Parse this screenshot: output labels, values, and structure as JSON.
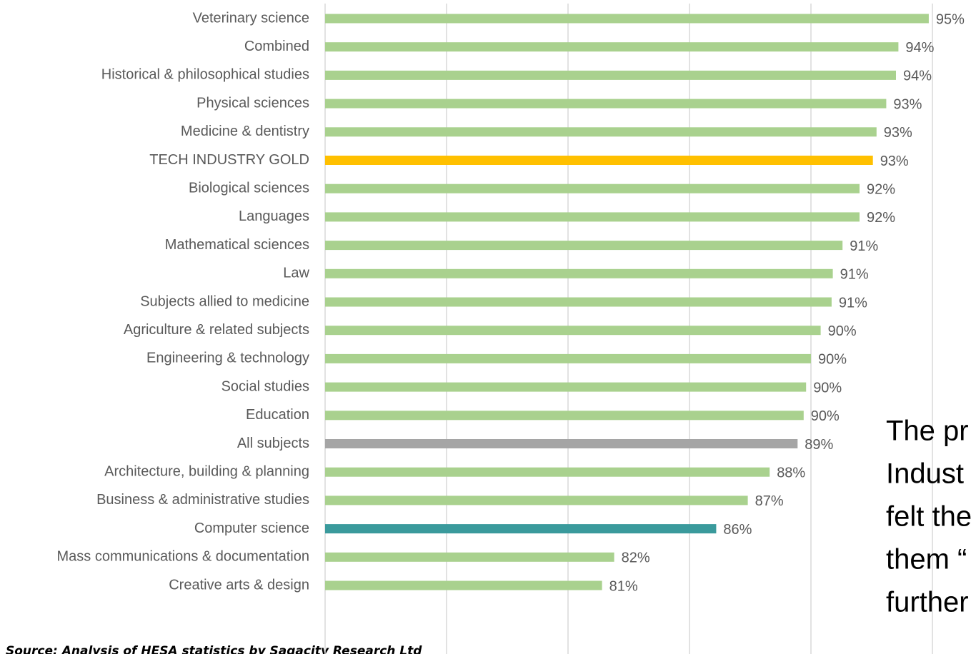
{
  "chart_data": {
    "type": "barh",
    "categories": [
      "Veterinary science",
      "Combined",
      "Historical & philosophical studies",
      "Physical sciences",
      "Medicine & dentistry",
      "TECH INDUSTRY GOLD",
      "Biological sciences",
      "Languages",
      "Mathematical sciences",
      "Law",
      "Subjects allied to medicine",
      "Agriculture & related subjects",
      "Engineering & technology",
      "Social studies",
      "Education",
      "All subjects",
      "Architecture, building & planning",
      "Business & administrative studies",
      "Computer science",
      "Mass communications & documentation",
      "Creative arts & design"
    ],
    "values": [
      94.85,
      93.6,
      93.5,
      93.1,
      92.7,
      92.55,
      92.0,
      92.0,
      91.3,
      90.9,
      90.85,
      90.4,
      90.0,
      89.8,
      89.7,
      89.45,
      88.3,
      87.4,
      86.1,
      81.9,
      81.4
    ],
    "value_labels": [
      "95%",
      "94%",
      "94%",
      "93%",
      "93%",
      "93%",
      "92%",
      "92%",
      "91%",
      "91%",
      "91%",
      "90%",
      "90%",
      "90%",
      "90%",
      "89%",
      "88%",
      "87%",
      "86%",
      "82%",
      "81%"
    ],
    "colors": [
      "#a9d18e",
      "#a9d18e",
      "#a9d18e",
      "#a9d18e",
      "#a9d18e",
      "#ffc000",
      "#a9d18e",
      "#a9d18e",
      "#a9d18e",
      "#a9d18e",
      "#a9d18e",
      "#a9d18e",
      "#a9d18e",
      "#a9d18e",
      "#a9d18e",
      "#a5a5a5",
      "#a9d18e",
      "#a9d18e",
      "#3a9a9c",
      "#a9d18e",
      "#a9d18e"
    ],
    "xlim": [
      70,
      95
    ],
    "xticks": [
      70,
      75,
      80,
      85,
      90,
      95
    ],
    "grid": true,
    "source": "Source: Analysis of HESA statistics by Sagacity Research Ltd",
    "annotation_lines": [
      "The pr",
      "Indust",
      "felt the",
      "them “",
      "further"
    ]
  }
}
